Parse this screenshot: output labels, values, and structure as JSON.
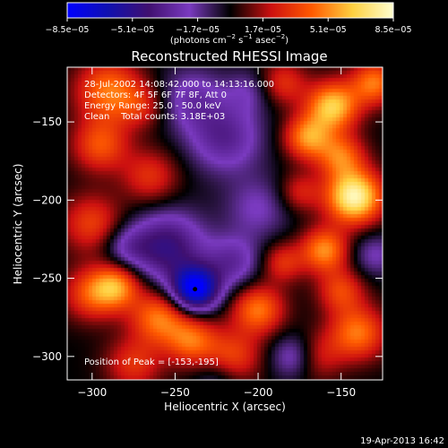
{
  "colorbar": {
    "ticks": [
      "−8.5e−05",
      "−5.1e−05",
      "−1.7e−05",
      "1.7e−05",
      "5.1e−05",
      "8.5e−05"
    ],
    "unit_main": "(photons cm",
    "unit_exp1": "−2",
    "unit_mid": " s",
    "unit_exp2": "−1",
    "unit_mid2": " asec",
    "unit_exp3": "−2",
    "unit_end": ")",
    "stops": [
      "#0000ff",
      "#1010b0",
      "#401070",
      "#7a3ac0",
      "#000000",
      "#cc1010",
      "#ff5a00",
      "#ffd040",
      "#ffffd0"
    ]
  },
  "chart_data": {
    "type": "heatmap",
    "title": "Reconstructed RHESSI Image",
    "xlabel": "Heliocentric X (arcsec)",
    "ylabel": "Heliocentric Y (arcsec)",
    "xlim": [
      -315,
      -125
    ],
    "ylim": [
      -315,
      -115
    ],
    "xticks": [
      -300,
      -250,
      -200,
      -150
    ],
    "yticks": [
      -150,
      -200,
      -250,
      -300
    ],
    "colorscale": [
      -8.5e-05,
      8.5e-05
    ],
    "peak": {
      "x": -153,
      "y": -195
    },
    "min_marker": {
      "x": -238,
      "y": -257
    },
    "annotations": [
      "28-Jul-2002 14:08:42.000 to 14:13:16.000",
      "Detectors: 4F 5F 6F 7F 8F, Att 0",
      "Energy Range: 25.0 - 50.0 keV",
      "Clean    Total counts: 3.18E+03"
    ],
    "peak_label": "Position of Peak = [-153,-195]",
    "sources": [
      {
        "x": -290,
        "y": -130,
        "a": 0.55,
        "s": 14
      },
      {
        "x": -295,
        "y": -165,
        "a": 0.45,
        "s": 12
      },
      {
        "x": -270,
        "y": -140,
        "a": 0.25,
        "s": 10
      },
      {
        "x": -265,
        "y": -185,
        "a": 0.35,
        "s": 12
      },
      {
        "x": -300,
        "y": -215,
        "a": 0.4,
        "s": 13
      },
      {
        "x": -300,
        "y": -260,
        "a": 0.45,
        "s": 12
      },
      {
        "x": -285,
        "y": -255,
        "a": 0.55,
        "s": 10
      },
      {
        "x": -260,
        "y": -275,
        "a": 0.55,
        "s": 12
      },
      {
        "x": -240,
        "y": -290,
        "a": 0.5,
        "s": 11
      },
      {
        "x": -200,
        "y": -270,
        "a": 0.55,
        "s": 11
      },
      {
        "x": -275,
        "y": -305,
        "a": 0.35,
        "s": 12
      },
      {
        "x": -215,
        "y": -300,
        "a": 0.4,
        "s": 12
      },
      {
        "x": -165,
        "y": -300,
        "a": 0.3,
        "s": 11
      },
      {
        "x": -140,
        "y": -285,
        "a": 0.55,
        "s": 12
      },
      {
        "x": -150,
        "y": -258,
        "a": 0.4,
        "s": 10
      },
      {
        "x": -185,
        "y": -240,
        "a": 0.35,
        "s": 9
      },
      {
        "x": -160,
        "y": -232,
        "a": 0.6,
        "s": 10
      },
      {
        "x": -142,
        "y": -198,
        "a": 0.95,
        "s": 12
      },
      {
        "x": -150,
        "y": -172,
        "a": 0.5,
        "s": 10
      },
      {
        "x": -170,
        "y": -160,
        "a": 0.6,
        "s": 10
      },
      {
        "x": -155,
        "y": -140,
        "a": 0.75,
        "s": 11
      },
      {
        "x": -130,
        "y": -125,
        "a": 0.55,
        "s": 10
      },
      {
        "x": -185,
        "y": -125,
        "a": 0.35,
        "s": 10
      },
      {
        "x": -175,
        "y": -195,
        "a": 0.3,
        "s": 9
      },
      {
        "x": -220,
        "y": -160,
        "a": -0.4,
        "s": 16
      },
      {
        "x": -240,
        "y": -135,
        "a": -0.3,
        "s": 14
      },
      {
        "x": -200,
        "y": -205,
        "a": -0.25,
        "s": 14
      },
      {
        "x": -255,
        "y": -230,
        "a": -0.55,
        "s": 16
      },
      {
        "x": -238,
        "y": -257,
        "a": -1.0,
        "s": 10
      },
      {
        "x": -215,
        "y": -240,
        "a": -0.35,
        "s": 12
      },
      {
        "x": -280,
        "y": -230,
        "a": -0.25,
        "s": 10
      },
      {
        "x": -178,
        "y": -300,
        "a": -0.35,
        "s": 10
      },
      {
        "x": -225,
        "y": -315,
        "a": -0.2,
        "s": 10
      },
      {
        "x": -130,
        "y": -235,
        "a": -0.25,
        "s": 10
      },
      {
        "x": -205,
        "y": -130,
        "a": -0.2,
        "s": 10
      }
    ]
  },
  "footer": {
    "date": "19-Apr-2013 16:42"
  }
}
